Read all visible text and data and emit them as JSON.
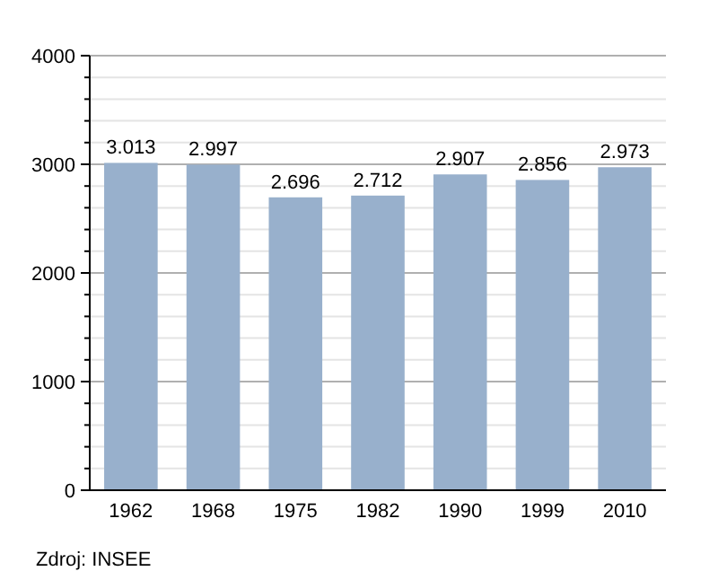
{
  "chart_data": {
    "type": "bar",
    "categories": [
      "1962",
      "1968",
      "1975",
      "1982",
      "1990",
      "1999",
      "2010"
    ],
    "values": [
      3013,
      2997,
      2696,
      2712,
      2907,
      2856,
      2973
    ],
    "value_labels": [
      "3.013",
      "2.997",
      "2.696",
      "2.712",
      "2.907",
      "2.856",
      "2.973"
    ],
    "color": "#98b0cc",
    "ylim": [
      0,
      4000
    ],
    "yticks": [
      0,
      {
        "value": 200,
        "label": null
      },
      {
        "value": 400,
        "label": null
      },
      {
        "value": 600,
        "label": null
      },
      {
        "value": 800,
        "label": null
      },
      1000,
      {
        "value": 1200,
        "label": null
      },
      {
        "value": 1400,
        "label": null
      },
      {
        "value": 1600,
        "label": null
      },
      {
        "value": 1800,
        "label": null
      },
      2000,
      {
        "value": 2200,
        "label": null
      },
      {
        "value": 2400,
        "label": null
      },
      {
        "value": 2600,
        "label": null
      },
      {
        "value": 2800,
        "label": null
      },
      3000,
      {
        "value": 3200,
        "label": null
      },
      {
        "value": 3400,
        "label": null
      },
      {
        "value": 3600,
        "label": null
      },
      {
        "value": 3800,
        "label": null
      },
      4000
    ],
    "grid": "y",
    "annotations": [
      "Zdroj: INSEE"
    ]
  }
}
